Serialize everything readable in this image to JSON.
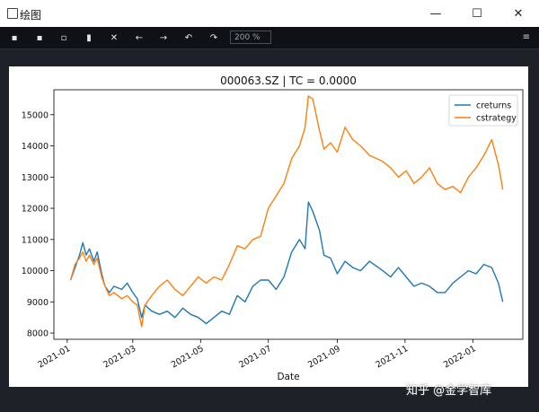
{
  "window": {
    "title": "绘图",
    "minimize": "—",
    "maximize": "☐",
    "close": "✕"
  },
  "toolbar": {
    "icons": [
      "save-icon",
      "save-as-icon",
      "copy-icon",
      "delete-icon",
      "close-icon",
      "arrow-left-icon",
      "arrow-right-icon",
      "undo-icon",
      "redo-icon"
    ],
    "zoom": "200 %",
    "menu_icon": "hamburger-icon"
  },
  "watermark": "知乎 @金学智库",
  "chart_data": {
    "type": "line",
    "title": "000063.SZ | TC = 0.0000",
    "xlabel": "Date",
    "ylabel": "",
    "xlim": [
      "2020-12-20",
      "2022-02-15"
    ],
    "ylim": [
      7800,
      15800
    ],
    "x_ticks": [
      "2021-01",
      "2021-03",
      "2021-05",
      "2021-07",
      "2021-09",
      "2021-11",
      "2022-01"
    ],
    "y_ticks": [
      8000,
      9000,
      10000,
      11000,
      12000,
      13000,
      14000,
      15000
    ],
    "legend": "top-right",
    "grid": false,
    "series": [
      {
        "name": "creturns",
        "color": "#1f77b4",
        "points": [
          [
            "2021-01-04",
            9700
          ],
          [
            "2021-01-08",
            10100
          ],
          [
            "2021-01-12",
            10500
          ],
          [
            "2021-01-15",
            10900
          ],
          [
            "2021-01-18",
            10500
          ],
          [
            "2021-01-21",
            10700
          ],
          [
            "2021-01-25",
            10300
          ],
          [
            "2021-01-28",
            10600
          ],
          [
            "2021-02-01",
            9900
          ],
          [
            "2021-02-04",
            9500
          ],
          [
            "2021-02-08",
            9300
          ],
          [
            "2021-02-12",
            9500
          ],
          [
            "2021-02-19",
            9400
          ],
          [
            "2021-02-24",
            9600
          ],
          [
            "2021-03-01",
            9300
          ],
          [
            "2021-03-05",
            9100
          ],
          [
            "2021-03-09",
            8500
          ],
          [
            "2021-03-12",
            8900
          ],
          [
            "2021-03-18",
            8700
          ],
          [
            "2021-03-25",
            8600
          ],
          [
            "2021-04-01",
            8700
          ],
          [
            "2021-04-08",
            8500
          ],
          [
            "2021-04-15",
            8800
          ],
          [
            "2021-04-22",
            8600
          ],
          [
            "2021-04-29",
            8500
          ],
          [
            "2021-05-06",
            8300
          ],
          [
            "2021-05-13",
            8500
          ],
          [
            "2021-05-20",
            8700
          ],
          [
            "2021-05-27",
            8600
          ],
          [
            "2021-06-03",
            9200
          ],
          [
            "2021-06-10",
            9000
          ],
          [
            "2021-06-17",
            9500
          ],
          [
            "2021-06-24",
            9700
          ],
          [
            "2021-07-01",
            9700
          ],
          [
            "2021-07-08",
            9400
          ],
          [
            "2021-07-15",
            9800
          ],
          [
            "2021-07-22",
            10600
          ],
          [
            "2021-07-29",
            11000
          ],
          [
            "2021-08-03",
            10700
          ],
          [
            "2021-08-06",
            12200
          ],
          [
            "2021-08-10",
            11900
          ],
          [
            "2021-08-16",
            11300
          ],
          [
            "2021-08-20",
            10500
          ],
          [
            "2021-08-26",
            10400
          ],
          [
            "2021-09-01",
            9900
          ],
          [
            "2021-09-08",
            10300
          ],
          [
            "2021-09-15",
            10100
          ],
          [
            "2021-09-22",
            10000
          ],
          [
            "2021-09-30",
            10300
          ],
          [
            "2021-10-12",
            10000
          ],
          [
            "2021-10-19",
            9800
          ],
          [
            "2021-10-26",
            10100
          ],
          [
            "2021-11-02",
            9800
          ],
          [
            "2021-11-09",
            9500
          ],
          [
            "2021-11-16",
            9600
          ],
          [
            "2021-11-23",
            9500
          ],
          [
            "2021-11-30",
            9300
          ],
          [
            "2021-12-07",
            9300
          ],
          [
            "2021-12-14",
            9600
          ],
          [
            "2021-12-21",
            9800
          ],
          [
            "2021-12-28",
            10000
          ],
          [
            "2022-01-04",
            9900
          ],
          [
            "2022-01-11",
            10200
          ],
          [
            "2022-01-18",
            10100
          ],
          [
            "2022-01-24",
            9600
          ],
          [
            "2022-01-28",
            9000
          ]
        ]
      },
      {
        "name": "cstrategy",
        "color": "#ff7f0e",
        "points": [
          [
            "2021-01-04",
            9700
          ],
          [
            "2021-01-08",
            10200
          ],
          [
            "2021-01-12",
            10400
          ],
          [
            "2021-01-15",
            10600
          ],
          [
            "2021-01-18",
            10300
          ],
          [
            "2021-01-21",
            10500
          ],
          [
            "2021-01-25",
            10200
          ],
          [
            "2021-01-28",
            10400
          ],
          [
            "2021-02-01",
            9800
          ],
          [
            "2021-02-04",
            9500
          ],
          [
            "2021-02-08",
            9200
          ],
          [
            "2021-02-12",
            9300
          ],
          [
            "2021-02-19",
            9100
          ],
          [
            "2021-02-24",
            9200
          ],
          [
            "2021-03-01",
            9000
          ],
          [
            "2021-03-05",
            8900
          ],
          [
            "2021-03-09",
            8200
          ],
          [
            "2021-03-12",
            8900
          ],
          [
            "2021-03-18",
            9200
          ],
          [
            "2021-03-25",
            9500
          ],
          [
            "2021-04-01",
            9700
          ],
          [
            "2021-04-08",
            9400
          ],
          [
            "2021-04-15",
            9200
          ],
          [
            "2021-04-22",
            9500
          ],
          [
            "2021-04-29",
            9800
          ],
          [
            "2021-05-06",
            9600
          ],
          [
            "2021-05-13",
            9800
          ],
          [
            "2021-05-20",
            9700
          ],
          [
            "2021-05-27",
            10200
          ],
          [
            "2021-06-03",
            10800
          ],
          [
            "2021-06-10",
            10700
          ],
          [
            "2021-06-17",
            11000
          ],
          [
            "2021-06-24",
            11100
          ],
          [
            "2021-07-01",
            12000
          ],
          [
            "2021-07-08",
            12400
          ],
          [
            "2021-07-15",
            12800
          ],
          [
            "2021-07-22",
            13600
          ],
          [
            "2021-07-29",
            14000
          ],
          [
            "2021-08-03",
            14600
          ],
          [
            "2021-08-06",
            15600
          ],
          [
            "2021-08-10",
            15500
          ],
          [
            "2021-08-16",
            14500
          ],
          [
            "2021-08-20",
            13900
          ],
          [
            "2021-08-26",
            14100
          ],
          [
            "2021-09-01",
            13800
          ],
          [
            "2021-09-08",
            14600
          ],
          [
            "2021-09-15",
            14200
          ],
          [
            "2021-09-22",
            14000
          ],
          [
            "2021-09-30",
            13700
          ],
          [
            "2021-10-12",
            13500
          ],
          [
            "2021-10-19",
            13300
          ],
          [
            "2021-10-26",
            13000
          ],
          [
            "2021-11-02",
            13200
          ],
          [
            "2021-11-09",
            12800
          ],
          [
            "2021-11-16",
            13000
          ],
          [
            "2021-11-23",
            13300
          ],
          [
            "2021-11-30",
            12800
          ],
          [
            "2021-12-07",
            12600
          ],
          [
            "2021-12-14",
            12700
          ],
          [
            "2021-12-21",
            12500
          ],
          [
            "2021-12-28",
            13000
          ],
          [
            "2022-01-04",
            13300
          ],
          [
            "2022-01-11",
            13700
          ],
          [
            "2022-01-18",
            14200
          ],
          [
            "2022-01-24",
            13400
          ],
          [
            "2022-01-28",
            12600
          ]
        ]
      }
    ]
  }
}
